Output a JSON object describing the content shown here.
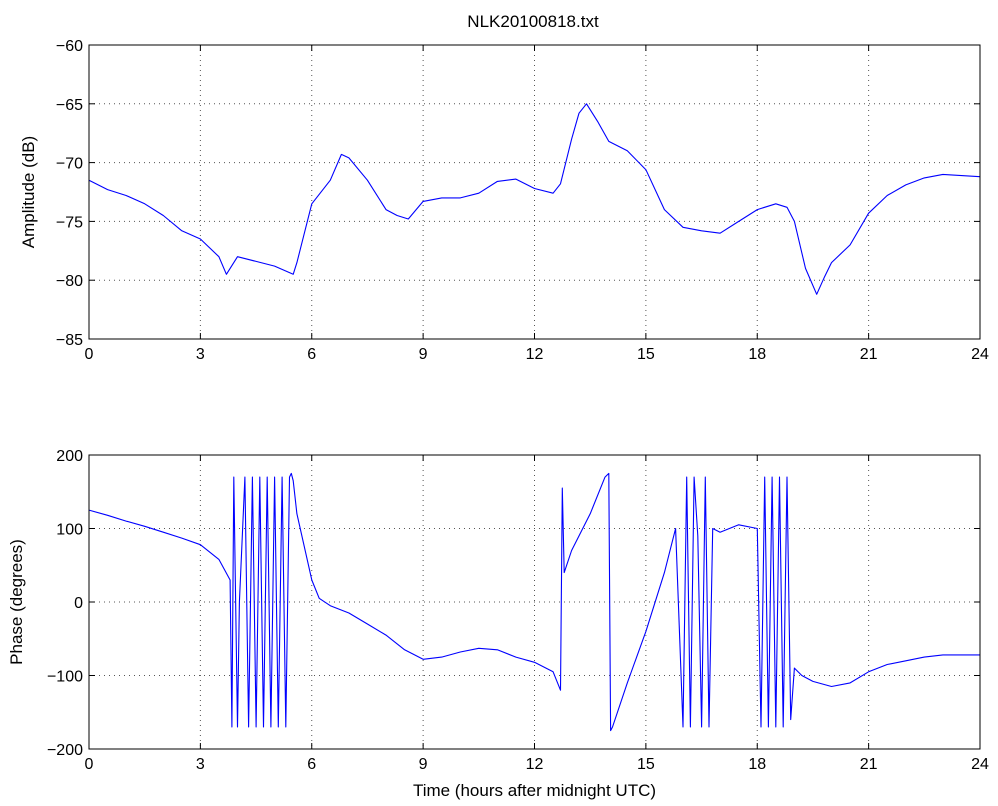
{
  "figure": {
    "title": "NLK20100818.txt"
  },
  "chart_data": [
    {
      "type": "line",
      "title": "NLK20100818.txt",
      "xlabel": "",
      "ylabel": "Amplitude (dB)",
      "xlim": [
        0,
        24
      ],
      "ylim": [
        -85,
        -60
      ],
      "xticks": [
        0,
        3,
        6,
        9,
        12,
        15,
        18,
        21,
        24
      ],
      "yticks": [
        -85,
        -80,
        -75,
        -70,
        -65,
        -60
      ],
      "xtick_labels": [
        "0",
        "3",
        "6",
        "9",
        "12",
        "15",
        "18",
        "21",
        "24"
      ],
      "ytick_labels": [
        "−85",
        "−80",
        "−75",
        "−70",
        "−65",
        "−60"
      ],
      "grid": true,
      "color": "#0000ff",
      "series": [
        {
          "x": [
            0,
            0.5,
            1,
            1.5,
            2,
            2.5,
            3,
            3.5,
            3.7,
            4,
            4.5,
            5,
            5.5,
            5.6,
            6,
            6.5,
            6.8,
            7,
            7.5,
            8,
            8.3,
            8.6,
            9,
            9.5,
            10,
            10.5,
            11,
            11.5,
            12,
            12.5,
            12.7,
            13,
            13.2,
            13.4,
            13.7,
            14,
            14.5,
            15,
            15.5,
            16,
            16.5,
            17,
            17.5,
            18,
            18.5,
            18.8,
            19,
            19.3,
            19.6,
            19.8,
            20,
            20.5,
            21,
            21.5,
            22,
            22.5,
            23,
            24
          ],
          "y": [
            -71.5,
            -72.3,
            -72.8,
            -73.5,
            -74.5,
            -75.8,
            -76.5,
            -78.0,
            -79.5,
            -78.0,
            -78.4,
            -78.8,
            -79.5,
            -78.5,
            -73.5,
            -71.5,
            -69.3,
            -69.6,
            -71.5,
            -74.0,
            -74.5,
            -74.8,
            -73.3,
            -73.0,
            -73.0,
            -72.6,
            -71.6,
            -71.4,
            -72.2,
            -72.6,
            -71.8,
            -68.0,
            -65.8,
            -65.0,
            -66.5,
            -68.2,
            -69.0,
            -70.6,
            -74.0,
            -75.5,
            -75.8,
            -76.0,
            -75.0,
            -74.0,
            -73.5,
            -73.8,
            -75.0,
            -79.0,
            -81.2,
            -79.8,
            -78.5,
            -77.0,
            -74.3,
            -72.8,
            -71.9,
            -71.3,
            -71.0,
            -71.2
          ]
        }
      ]
    },
    {
      "type": "line",
      "xlabel": "Time (hours after midnight UTC)",
      "ylabel": "Phase (degrees)",
      "xlim": [
        0,
        24
      ],
      "ylim": [
        -200,
        200
      ],
      "xticks": [
        0,
        3,
        6,
        9,
        12,
        15,
        18,
        21,
        24
      ],
      "yticks": [
        -200,
        -100,
        0,
        100,
        200
      ],
      "xtick_labels": [
        "0",
        "3",
        "6",
        "9",
        "12",
        "15",
        "18",
        "21",
        "24"
      ],
      "ytick_labels": [
        "−200",
        "−100",
        "0",
        "100",
        "200"
      ],
      "grid": true,
      "color": "#0000ff",
      "series": [
        {
          "x": [
            0,
            0.5,
            1,
            1.5,
            2,
            2.5,
            3,
            3.5,
            3.8,
            3.85,
            3.9,
            4.0,
            4.05,
            4.2,
            4.3,
            4.4,
            4.5,
            4.6,
            4.7,
            4.8,
            4.9,
            5.0,
            5.1,
            5.2,
            5.3,
            5.4,
            5.45,
            5.5,
            5.6,
            6,
            6.2,
            6.5,
            7,
            7.5,
            8,
            8.5,
            9,
            9.5,
            10,
            10.5,
            11,
            11.5,
            12,
            12.5,
            12.7,
            12.75,
            12.8,
            13,
            13.5,
            13.9,
            14.0,
            14.05,
            14.1,
            14.5,
            15,
            15.5,
            15.8,
            16.0,
            16.1,
            16.2,
            16.3,
            16.4,
            16.5,
            16.6,
            16.7,
            16.8,
            17.0,
            17.5,
            18.0,
            18.1,
            18.2,
            18.3,
            18.4,
            18.5,
            18.6,
            18.7,
            18.8,
            18.9,
            19.0,
            19.2,
            19.5,
            20,
            20.5,
            21,
            21.5,
            22,
            22.5,
            23,
            24
          ],
          "y": [
            125,
            118,
            110,
            103,
            95,
            87,
            78,
            58,
            30,
            -170,
            170,
            -170,
            0,
            170,
            -170,
            170,
            -170,
            170,
            -170,
            170,
            -170,
            170,
            -170,
            170,
            -170,
            170,
            175,
            165,
            120,
            30,
            5,
            -5,
            -15,
            -30,
            -45,
            -65,
            -78,
            -75,
            -68,
            -63,
            -65,
            -75,
            -82,
            -95,
            -120,
            155,
            40,
            70,
            120,
            170,
            175,
            -175,
            -170,
            -110,
            -40,
            40,
            100,
            -170,
            170,
            -170,
            170,
            90,
            -170,
            170,
            -170,
            100,
            95,
            105,
            100,
            -170,
            170,
            -170,
            170,
            -170,
            170,
            -170,
            170,
            -160,
            -90,
            -100,
            -108,
            -115,
            -110,
            -95,
            -85,
            -80,
            -75,
            -72,
            -72
          ]
        }
      ]
    }
  ]
}
